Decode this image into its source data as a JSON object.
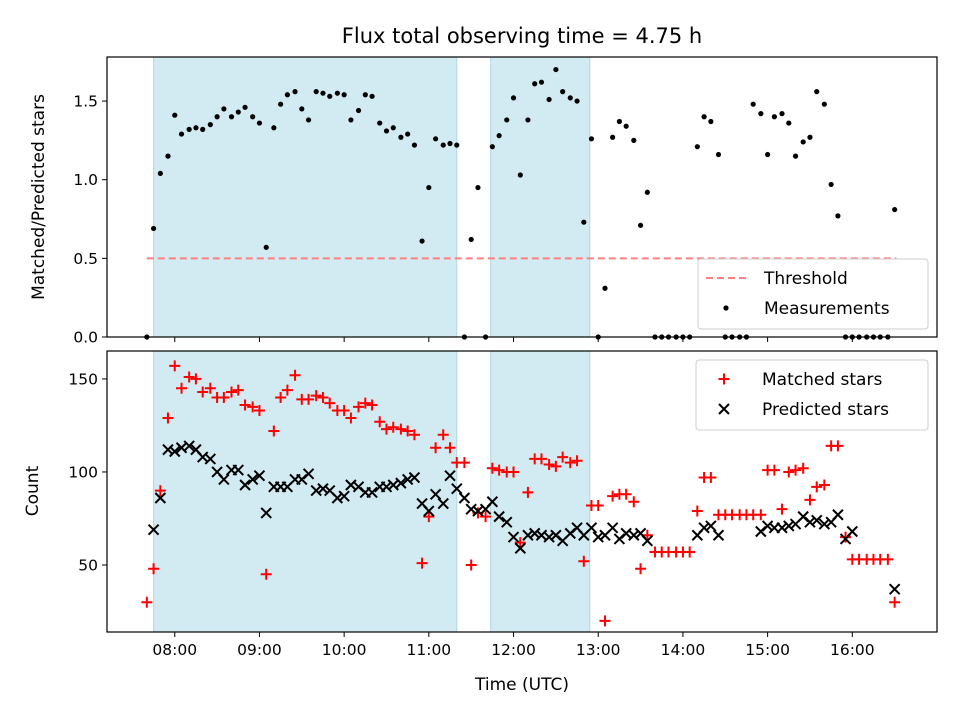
{
  "title": "Flux total observing time = 4.75 h",
  "colors": {
    "shade": "#add8e6",
    "threshold": "#ff7f7f",
    "matched": "#ff0000",
    "predicted": "#000000",
    "measurement": "#000000"
  },
  "chart_data": [
    {
      "type": "scatter",
      "ylabel": "Matched/Predicted stars",
      "xlim": [
        7.2,
        17.0
      ],
      "ylim": [
        0,
        1.78
      ],
      "yticks": [
        0.0,
        0.5,
        1.0,
        1.5
      ],
      "ytick_labels": [
        "0.0",
        "0.5",
        "1.0",
        "1.5"
      ],
      "shaded_intervals": [
        [
          7.75,
          11.33
        ],
        [
          11.73,
          12.9
        ]
      ],
      "threshold": {
        "name": "Threshold",
        "y": 0.5,
        "x_range": [
          7.67,
          16.52
        ]
      },
      "legend": {
        "position": "lower-right",
        "entries": [
          "Threshold",
          "Measurements"
        ]
      },
      "series": [
        {
          "name": "Measurements",
          "x": [
            7.67,
            7.75,
            7.83,
            7.92,
            8.0,
            8.08,
            8.17,
            8.25,
            8.33,
            8.42,
            8.5,
            8.58,
            8.67,
            8.75,
            8.83,
            8.92,
            9.0,
            9.08,
            9.17,
            9.25,
            9.33,
            9.42,
            9.5,
            9.58,
            9.67,
            9.75,
            9.83,
            9.92,
            10.0,
            10.08,
            10.17,
            10.25,
            10.33,
            10.42,
            10.5,
            10.58,
            10.67,
            10.75,
            10.83,
            10.92,
            11.0,
            11.08,
            11.17,
            11.25,
            11.33,
            11.42,
            11.5,
            11.58,
            11.67,
            11.75,
            11.83,
            11.92,
            12.0,
            12.08,
            12.17,
            12.25,
            12.33,
            12.42,
            12.5,
            12.58,
            12.67,
            12.75,
            12.83,
            12.92,
            13.0,
            13.08,
            13.17,
            13.25,
            13.33,
            13.42,
            13.5,
            13.58,
            13.67,
            13.75,
            13.83,
            13.92,
            14.0,
            14.08,
            14.17,
            14.25,
            14.33,
            14.42,
            14.5,
            14.58,
            14.67,
            14.75,
            14.83,
            14.92,
            15.0,
            15.08,
            15.17,
            15.25,
            15.33,
            15.42,
            15.5,
            15.58,
            15.67,
            15.75,
            15.83,
            15.92,
            16.0,
            16.08,
            16.17,
            16.25,
            16.33,
            16.42,
            16.5
          ],
          "y": [
            0.0,
            0.69,
            1.04,
            1.15,
            1.41,
            1.29,
            1.32,
            1.33,
            1.32,
            1.35,
            1.4,
            1.45,
            1.4,
            1.43,
            1.46,
            1.4,
            1.36,
            0.57,
            1.33,
            1.48,
            1.54,
            1.56,
            1.45,
            1.38,
            1.56,
            1.55,
            1.53,
            1.55,
            1.54,
            1.38,
            1.44,
            1.54,
            1.53,
            1.36,
            1.31,
            1.33,
            1.27,
            1.29,
            1.22,
            0.61,
            0.95,
            1.26,
            1.22,
            1.23,
            1.22,
            0.0,
            0.62,
            0.95,
            0.0,
            1.21,
            1.28,
            1.38,
            1.52,
            1.03,
            1.38,
            1.61,
            1.62,
            1.51,
            1.7,
            1.56,
            1.52,
            1.5,
            0.73,
            1.26,
            0.0,
            0.31,
            1.27,
            1.37,
            1.34,
            1.25,
            0.71,
            0.92,
            0.0,
            0.0,
            0.0,
            0.0,
            0.0,
            0.0,
            1.21,
            1.4,
            1.37,
            1.16,
            0.0,
            0.0,
            0.0,
            0.0,
            1.48,
            1.42,
            1.16,
            1.4,
            1.42,
            1.36,
            1.15,
            1.24,
            1.27,
            1.56,
            1.48,
            0.97,
            0.77,
            0.0,
            0.0,
            0.0,
            0.0,
            0.0,
            0.0,
            0.0,
            0.81
          ]
        }
      ]
    },
    {
      "type": "scatter",
      "xlabel": "Time (UTC)",
      "ylabel": "Count",
      "xlim": [
        7.2,
        17.0
      ],
      "ylim": [
        14,
        165
      ],
      "xticks": [
        8,
        9,
        10,
        11,
        12,
        13,
        14,
        15,
        16
      ],
      "xtick_labels": [
        "08:00",
        "09:00",
        "10:00",
        "11:00",
        "12:00",
        "13:00",
        "14:00",
        "15:00",
        "16:00"
      ],
      "yticks": [
        50,
        100,
        150
      ],
      "ytick_labels": [
        "50",
        "100",
        "150"
      ],
      "shaded_intervals": [
        [
          7.75,
          11.33
        ],
        [
          11.73,
          12.9
        ]
      ],
      "legend": {
        "position": "upper-right",
        "entries": [
          "Matched stars",
          "Predicted stars"
        ]
      },
      "series": [
        {
          "name": "Matched stars",
          "x": [
            7.67,
            7.75,
            7.83,
            7.92,
            8.0,
            8.08,
            8.17,
            8.25,
            8.33,
            8.42,
            8.5,
            8.58,
            8.67,
            8.75,
            8.83,
            8.92,
            9.0,
            9.08,
            9.17,
            9.25,
            9.33,
            9.42,
            9.5,
            9.58,
            9.67,
            9.75,
            9.83,
            9.92,
            10.0,
            10.08,
            10.17,
            10.25,
            10.33,
            10.42,
            10.5,
            10.58,
            10.67,
            10.75,
            10.83,
            10.92,
            11.0,
            11.08,
            11.17,
            11.25,
            11.33,
            11.42,
            11.5,
            11.58,
            11.67,
            11.75,
            11.83,
            11.92,
            12.0,
            12.08,
            12.17,
            12.25,
            12.33,
            12.42,
            12.5,
            12.58,
            12.67,
            12.75,
            12.83,
            12.92,
            13.0,
            13.08,
            13.17,
            13.25,
            13.33,
            13.42,
            13.5,
            13.58,
            13.67,
            13.75,
            13.83,
            13.92,
            14.0,
            14.08,
            14.17,
            14.25,
            14.33,
            14.42,
            14.5,
            14.58,
            14.67,
            14.75,
            14.83,
            14.92,
            15.0,
            15.08,
            15.17,
            15.25,
            15.33,
            15.42,
            15.5,
            15.58,
            15.67,
            15.75,
            15.83,
            15.92,
            16.0,
            16.08,
            16.17,
            16.25,
            16.33,
            16.42,
            16.5
          ],
          "y": [
            30,
            48,
            90,
            129,
            157,
            145,
            151,
            150,
            143,
            145,
            140,
            140,
            143,
            144,
            136,
            135,
            133,
            45,
            122,
            140,
            144,
            152,
            139,
            139,
            141,
            140,
            137,
            133,
            133,
            129,
            135,
            137,
            136,
            127,
            123,
            124,
            123,
            122,
            120,
            51,
            76,
            113,
            120,
            113,
            105,
            105,
            50,
            78,
            76,
            102,
            101,
            100,
            100,
            62,
            89,
            107,
            107,
            104,
            103,
            108,
            105,
            106,
            52,
            82,
            82,
            20,
            87,
            88,
            88,
            84,
            48,
            66,
            57,
            57,
            57,
            57,
            57,
            57,
            79,
            97,
            97,
            77,
            77,
            77,
            77,
            77,
            77,
            77,
            101,
            101,
            80,
            100,
            101,
            102,
            85,
            92,
            93,
            114,
            114,
            65,
            53,
            53,
            53,
            53,
            53,
            53,
            30
          ]
        },
        {
          "name": "Predicted stars",
          "x": [
            7.67,
            7.75,
            7.83,
            7.92,
            8.0,
            8.08,
            8.17,
            8.25,
            8.33,
            8.42,
            8.5,
            8.58,
            8.67,
            8.75,
            8.83,
            8.92,
            9.0,
            9.08,
            9.17,
            9.25,
            9.33,
            9.42,
            9.5,
            9.58,
            9.67,
            9.75,
            9.83,
            9.92,
            10.0,
            10.08,
            10.17,
            10.25,
            10.33,
            10.42,
            10.5,
            10.58,
            10.67,
            10.75,
            10.83,
            10.92,
            11.0,
            11.08,
            11.17,
            11.25,
            11.33,
            11.42,
            11.5,
            11.58,
            11.67,
            11.75,
            11.83,
            11.92,
            12.0,
            12.08,
            12.17,
            12.25,
            12.33,
            12.42,
            12.5,
            12.58,
            12.67,
            12.75,
            12.83,
            12.92,
            13.0,
            13.08,
            13.17,
            13.25,
            13.33,
            13.42,
            13.5,
            13.58,
            13.67,
            13.75,
            13.83,
            13.92,
            14.0,
            14.08,
            14.17,
            14.25,
            14.33,
            14.42,
            14.5,
            14.58,
            14.67,
            14.75,
            14.83,
            14.92,
            15.0,
            15.08,
            15.17,
            15.25,
            15.33,
            15.42,
            15.5,
            15.58,
            15.67,
            15.75,
            15.83,
            15.92,
            16.0,
            16.08,
            16.17,
            16.25,
            16.33,
            16.42,
            16.5
          ],
          "y": [
            null,
            69,
            86,
            112,
            111,
            113,
            114,
            112,
            108,
            107,
            100,
            96,
            101,
            101,
            93,
            96,
            98,
            78,
            92,
            92,
            92,
            96,
            96,
            99,
            90,
            91,
            90,
            86,
            87,
            93,
            92,
            89,
            89,
            92,
            92,
            93,
            94,
            96,
            97,
            83,
            79,
            88,
            83,
            98,
            91,
            86,
            80,
            79,
            80,
            84,
            76,
            73,
            65,
            59,
            66,
            67,
            66,
            65,
            66,
            63,
            67,
            70,
            66,
            70,
            65,
            66,
            70,
            64,
            67,
            66,
            67,
            63,
            null,
            null,
            null,
            null,
            null,
            null,
            66,
            70,
            71,
            66,
            null,
            null,
            null,
            null,
            null,
            68,
            71,
            70,
            70,
            71,
            72,
            76,
            73,
            74,
            72,
            73,
            77,
            64,
            68,
            null,
            null,
            null,
            null,
            null,
            37
          ]
        }
      ]
    }
  ]
}
